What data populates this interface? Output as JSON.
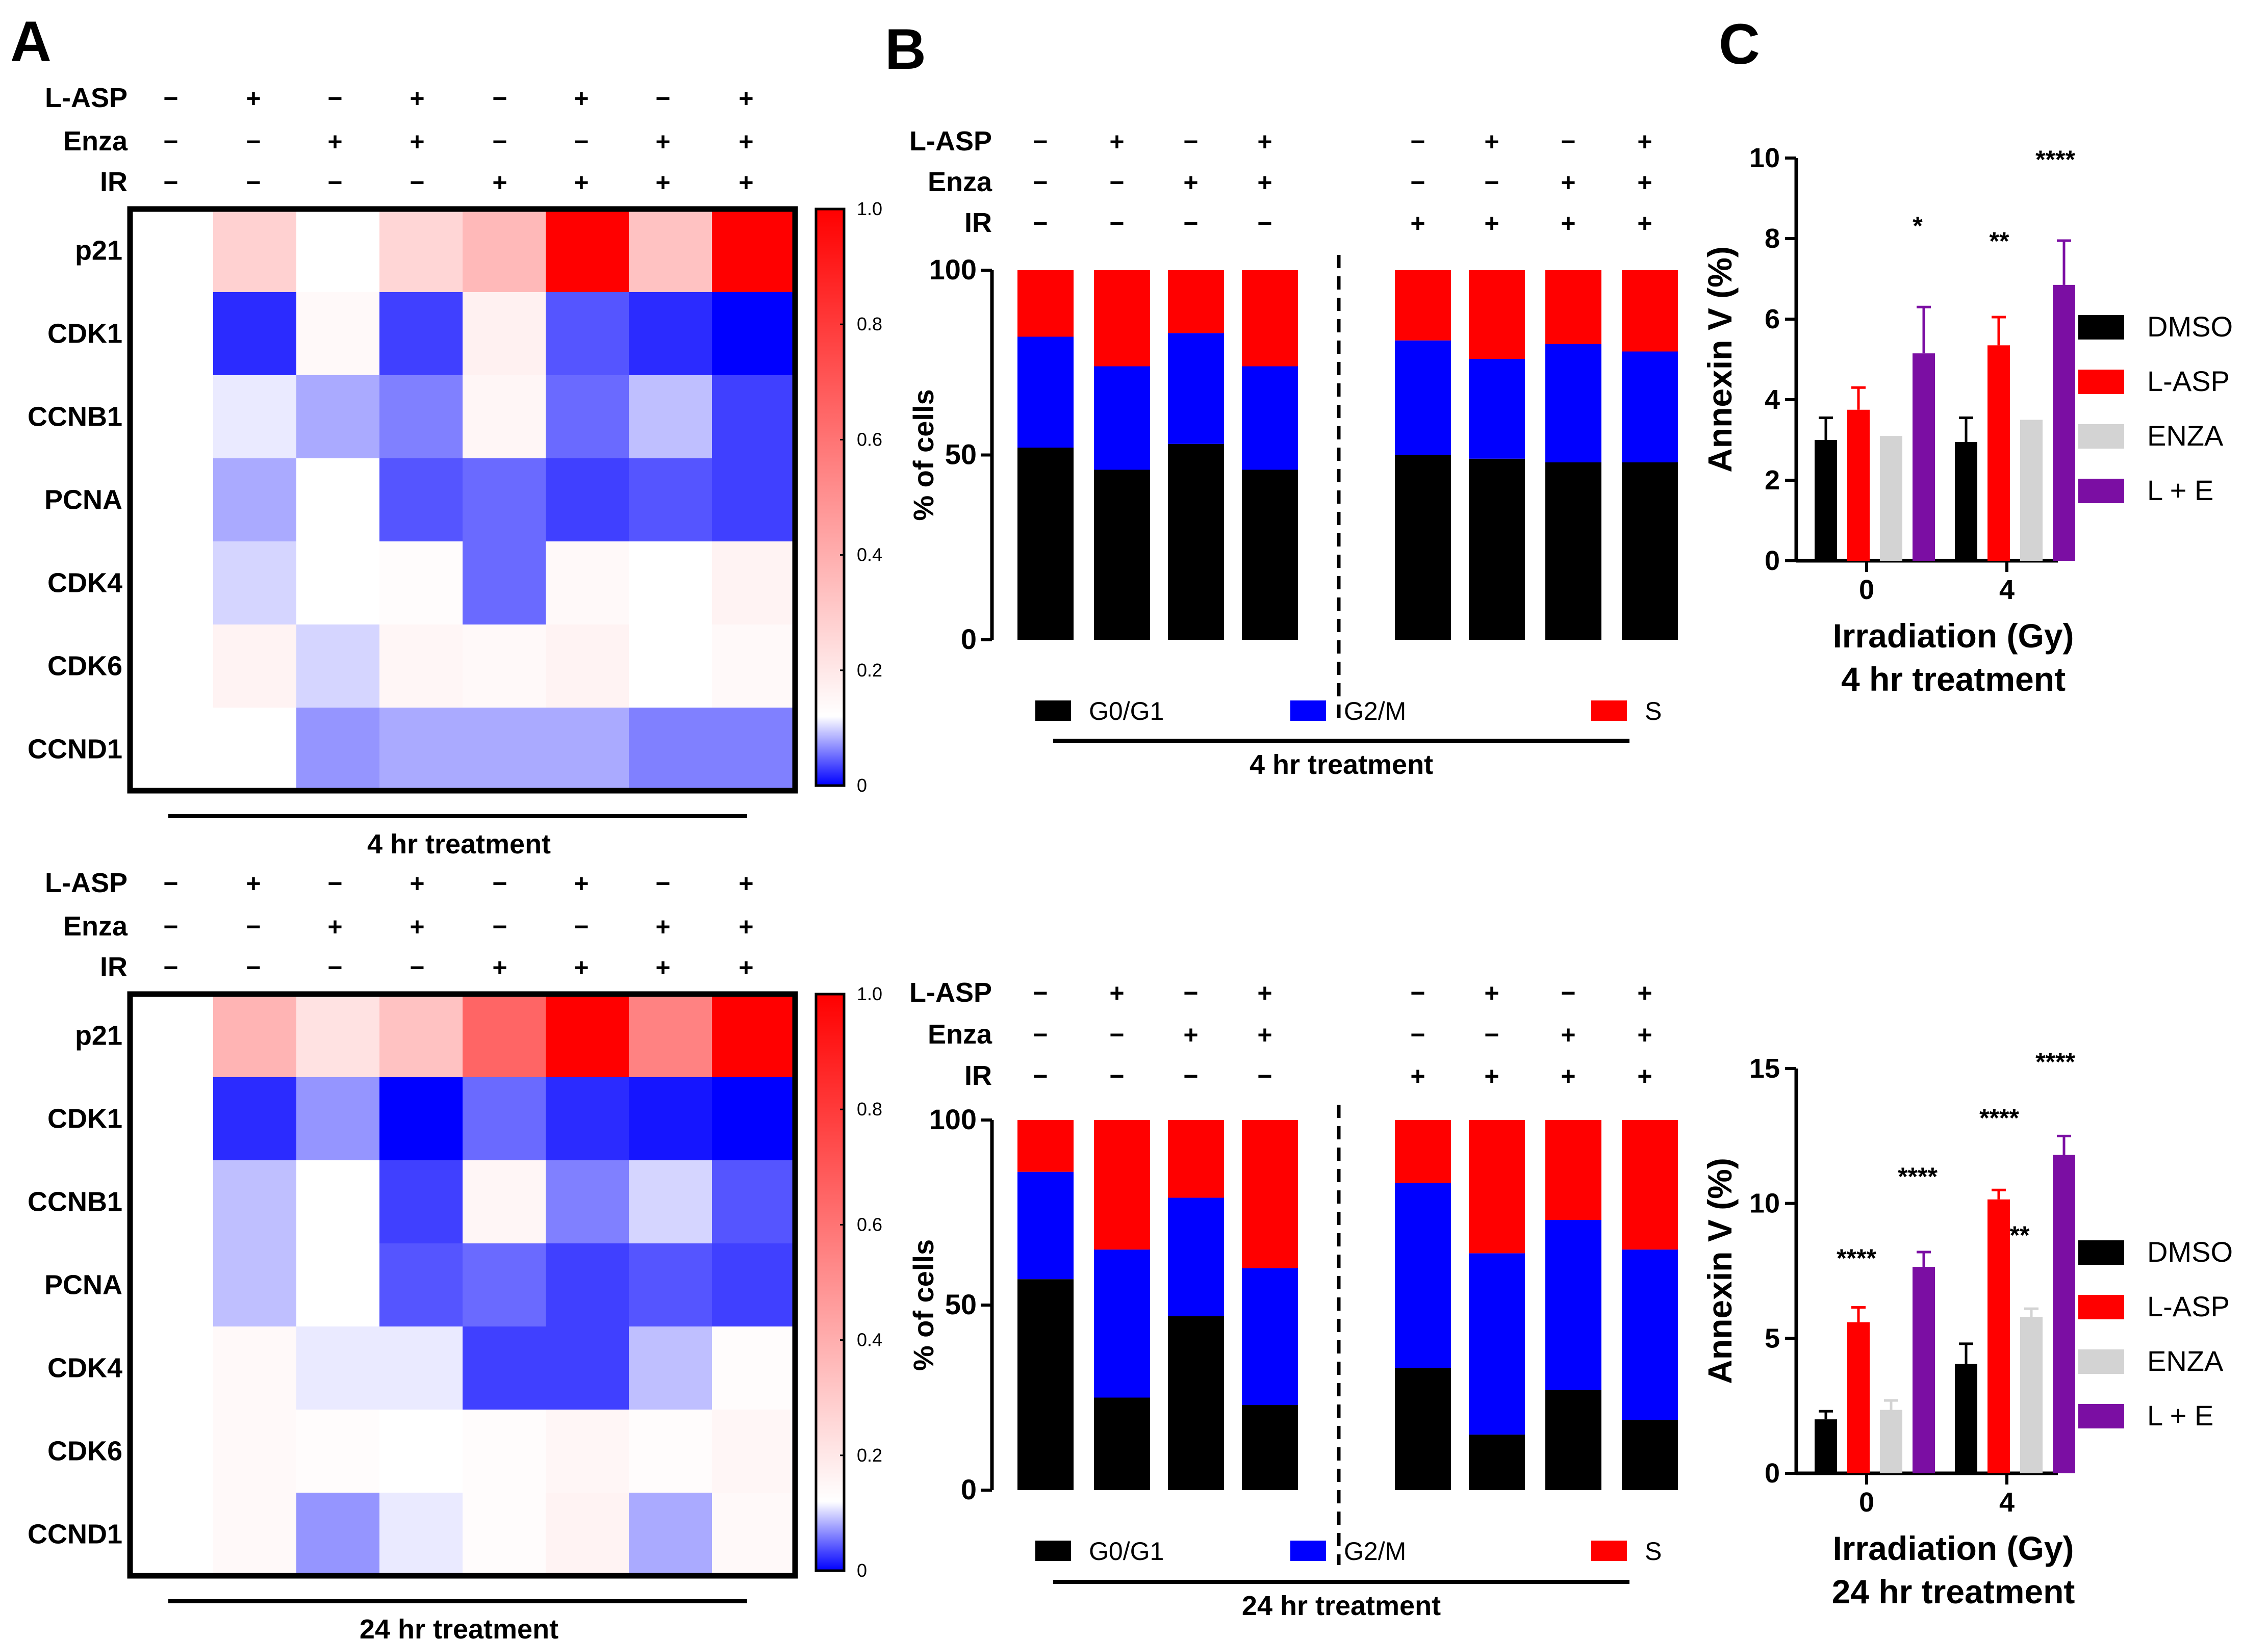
{
  "panel_letters": [
    "A",
    "B",
    "C"
  ],
  "conditions": {
    "row_labels": [
      "L-ASP",
      "Enza",
      "IR"
    ],
    "matrix": [
      [
        "−",
        "+",
        "−",
        "+",
        "−",
        "+",
        "−",
        "+"
      ],
      [
        "−",
        "−",
        "+",
        "+",
        "−",
        "−",
        "+",
        "+"
      ],
      [
        "−",
        "−",
        "−",
        "−",
        "+",
        "+",
        "+",
        "+"
      ]
    ]
  },
  "colors": {
    "heat_low": "#0000ff",
    "heat_mid": "#ffffff",
    "heat_high": "#ff0000",
    "G0G1": "#000000",
    "G2M": "#0000ff",
    "S": "#ff0000",
    "DMSO": "#000000",
    "L-ASP": "#ff0000",
    "ENZA": "#d3d3d3",
    "L + E": "#7b0ea3"
  },
  "chart_data": [
    {
      "id": "A_4hr",
      "type": "heatmap",
      "title": "4 hr treatment",
      "rows": [
        "p21",
        "CDK1",
        "CCNB1",
        "PCNA",
        "CDK4",
        "CDK6",
        "CCND1"
      ],
      "colorbar_ticks": [
        "1.0",
        "0.8",
        "0.6",
        "0.4",
        "0.2",
        "0"
      ],
      "colorbar_range": [
        0,
        1
      ],
      "values": [
        [
          null,
          0.28,
          0.12,
          0.26,
          0.36,
          1.0,
          0.33,
          1.0
        ],
        [
          null,
          0.02,
          0.14,
          0.03,
          0.17,
          0.04,
          0.02,
          0.0
        ],
        [
          null,
          0.11,
          0.08,
          0.06,
          0.15,
          0.05,
          0.09,
          0.03
        ],
        [
          null,
          0.08,
          0.12,
          0.04,
          0.05,
          0.03,
          0.04,
          0.03
        ],
        [
          null,
          0.1,
          0.12,
          0.13,
          0.05,
          0.14,
          0.12,
          0.16
        ],
        [
          null,
          0.16,
          0.1,
          0.15,
          0.14,
          0.16,
          0.12,
          0.14
        ],
        [
          null,
          0.12,
          0.07,
          0.08,
          0.08,
          0.08,
          0.06,
          0.06
        ]
      ]
    },
    {
      "id": "A_24hr",
      "type": "heatmap",
      "title": "24 hr treatment",
      "rows": [
        "p21",
        "CDK1",
        "CCNB1",
        "PCNA",
        "CDK4",
        "CDK6",
        "CCND1"
      ],
      "colorbar_ticks": [
        "1.0",
        "0.8",
        "0.6",
        "0.4",
        "0.2",
        "0"
      ],
      "colorbar_range": [
        0,
        1
      ],
      "values": [
        [
          null,
          0.38,
          0.22,
          0.33,
          0.65,
          1.0,
          0.55,
          1.0
        ],
        [
          null,
          0.02,
          0.07,
          0.0,
          0.05,
          0.02,
          0.01,
          0.0
        ],
        [
          null,
          0.09,
          0.12,
          0.03,
          0.15,
          0.06,
          0.1,
          0.04
        ],
        [
          null,
          0.09,
          0.12,
          0.04,
          0.05,
          0.03,
          0.04,
          0.03
        ],
        [
          null,
          0.14,
          0.11,
          0.11,
          0.03,
          0.03,
          0.09,
          0.13
        ],
        [
          null,
          0.14,
          0.13,
          0.12,
          0.13,
          0.15,
          0.13,
          0.15
        ],
        [
          null,
          0.14,
          0.07,
          0.11,
          0.13,
          0.16,
          0.08,
          0.14
        ]
      ]
    },
    {
      "id": "B_4hr",
      "type": "bar",
      "stacked": true,
      "title": "4 hr treatment",
      "ylabel": "% of cells",
      "ylim": [
        0,
        100
      ],
      "yticks": [
        "0",
        "50",
        "100"
      ],
      "series": [
        {
          "name": "G0/G1",
          "values": [
            52,
            46,
            53,
            46,
            50,
            49,
            48,
            48
          ]
        },
        {
          "name": "G2/M",
          "values": [
            30,
            28,
            30,
            28,
            31,
            27,
            32,
            30
          ]
        },
        {
          "name": "S",
          "values": [
            18,
            26,
            17,
            26,
            19,
            24,
            20,
            22
          ]
        }
      ]
    },
    {
      "id": "B_24hr",
      "type": "bar",
      "stacked": true,
      "title": "24 hr treatment",
      "ylabel": "% of cells",
      "ylim": [
        0,
        100
      ],
      "yticks": [
        "0",
        "50",
        "100"
      ],
      "series": [
        {
          "name": "G0/G1",
          "values": [
            57,
            25,
            47,
            23,
            33,
            15,
            27,
            19
          ]
        },
        {
          "name": "G2/M",
          "values": [
            29,
            40,
            32,
            37,
            50,
            49,
            46,
            46
          ]
        },
        {
          "name": "S",
          "values": [
            14,
            35,
            21,
            40,
            17,
            36,
            27,
            35
          ]
        }
      ]
    },
    {
      "id": "C_4hr",
      "type": "bar",
      "title": "4 hr treatment",
      "xlabel": "Irradiation (Gy)",
      "ylabel": "Annexin V (%)",
      "categories": [
        "0",
        "4"
      ],
      "ylim": [
        0,
        10
      ],
      "yticks": [
        "0",
        "2",
        "4",
        "6",
        "8",
        "10"
      ],
      "series": [
        {
          "name": "DMSO",
          "values": [
            3.0,
            2.95
          ],
          "errors": [
            0.55,
            0.6
          ]
        },
        {
          "name": "L-ASP",
          "values": [
            3.75,
            5.35
          ],
          "errors": [
            0.55,
            0.7
          ]
        },
        {
          "name": "ENZA",
          "values": [
            3.1,
            3.5
          ],
          "errors": [
            0,
            0
          ]
        },
        {
          "name": "L + E",
          "values": [
            5.15,
            6.85
          ],
          "errors": [
            1.15,
            1.1
          ]
        }
      ],
      "annotations": [
        "*",
        "**",
        "****"
      ]
    },
    {
      "id": "C_24hr",
      "type": "bar",
      "title": "24 hr treatment",
      "xlabel": "Irradiation (Gy)",
      "ylabel": "Annexin V (%)",
      "categories": [
        "0",
        "4"
      ],
      "ylim": [
        0,
        15
      ],
      "yticks": [
        "0",
        "5",
        "10",
        "15"
      ],
      "series": [
        {
          "name": "DMSO",
          "values": [
            2.0,
            4.05
          ],
          "errors": [
            0.3,
            0.75
          ]
        },
        {
          "name": "L-ASP",
          "values": [
            5.6,
            10.15
          ],
          "errors": [
            0.55,
            0.35
          ]
        },
        {
          "name": "ENZA",
          "values": [
            2.35,
            5.8
          ],
          "errors": [
            0.35,
            0.3
          ]
        },
        {
          "name": "L + E",
          "values": [
            7.65,
            11.8
          ],
          "errors": [
            0.55,
            0.7
          ]
        }
      ],
      "annotations": [
        "****",
        "****",
        "****",
        "**",
        "****"
      ]
    }
  ]
}
